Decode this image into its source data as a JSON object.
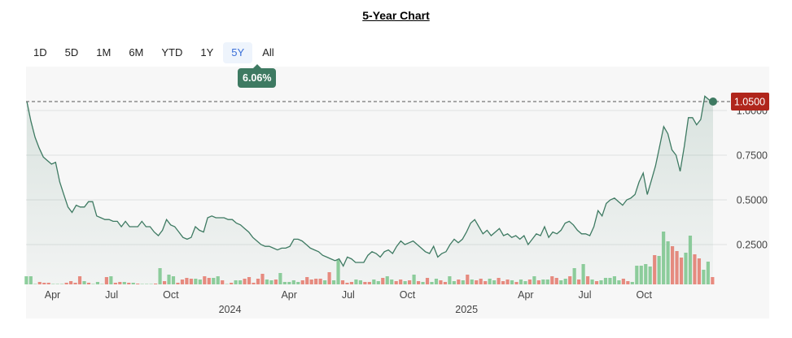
{
  "title": "5-Year Chart",
  "tabs": [
    "1D",
    "5D",
    "1M",
    "6M",
    "YTD",
    "1Y",
    "5Y",
    "All"
  ],
  "active_tab": "5Y",
  "change_badge": "6.06%",
  "colors": {
    "line": "#3e7a62",
    "up": "#8fcf9d",
    "down": "#ec8b80",
    "last_price": "#b0261c"
  },
  "chart_data": {
    "type": "line",
    "title": "5-Year Chart",
    "ylim": [
      0,
      1.1
    ],
    "y_ticks": [
      "0.2500",
      "0.5000",
      "0.7500",
      "1.0000"
    ],
    "y_tick_values": [
      0.25,
      0.5,
      0.75,
      1.0
    ],
    "last_price_label": "1.0500",
    "last_price": 1.05,
    "x_range_months_since_apr_2023": [
      -1.3,
      33.5
    ],
    "x_ticks": [
      {
        "label": "Apr",
        "t": 0,
        "row": 1
      },
      {
        "label": "Jul",
        "t": 3,
        "row": 1
      },
      {
        "label": "Oct",
        "t": 6,
        "row": 1
      },
      {
        "label": "2024",
        "t": 9,
        "row": 2
      },
      {
        "label": "Apr",
        "t": 12,
        "row": 1
      },
      {
        "label": "Jul",
        "t": 15,
        "row": 1
      },
      {
        "label": "Oct",
        "t": 18,
        "row": 1
      },
      {
        "label": "2025",
        "t": 21,
        "row": 2
      },
      {
        "label": "Apr",
        "t": 24,
        "row": 1
      },
      {
        "label": "Jul",
        "t": 27,
        "row": 1
      },
      {
        "label": "Oct",
        "t": 30,
        "row": 1
      }
    ],
    "price": [
      1.05,
      0.94,
      0.85,
      0.79,
      0.74,
      0.72,
      0.7,
      0.71,
      0.6,
      0.53,
      0.46,
      0.43,
      0.47,
      0.46,
      0.46,
      0.49,
      0.49,
      0.41,
      0.4,
      0.39,
      0.39,
      0.38,
      0.38,
      0.35,
      0.38,
      0.35,
      0.35,
      0.35,
      0.38,
      0.35,
      0.35,
      0.32,
      0.3,
      0.33,
      0.39,
      0.36,
      0.35,
      0.32,
      0.29,
      0.28,
      0.29,
      0.35,
      0.33,
      0.32,
      0.4,
      0.41,
      0.4,
      0.4,
      0.4,
      0.39,
      0.39,
      0.37,
      0.36,
      0.34,
      0.32,
      0.29,
      0.27,
      0.25,
      0.24,
      0.24,
      0.23,
      0.22,
      0.23,
      0.23,
      0.24,
      0.28,
      0.28,
      0.27,
      0.25,
      0.23,
      0.22,
      0.21,
      0.19,
      0.18,
      0.17,
      0.16,
      0.17,
      0.13,
      0.18,
      0.17,
      0.15,
      0.15,
      0.15,
      0.19,
      0.21,
      0.2,
      0.18,
      0.21,
      0.22,
      0.2,
      0.24,
      0.27,
      0.25,
      0.26,
      0.27,
      0.25,
      0.23,
      0.21,
      0.2,
      0.24,
      0.18,
      0.2,
      0.21,
      0.25,
      0.28,
      0.26,
      0.28,
      0.32,
      0.37,
      0.39,
      0.35,
      0.31,
      0.33,
      0.3,
      0.32,
      0.34,
      0.3,
      0.31,
      0.29,
      0.3,
      0.28,
      0.3,
      0.25,
      0.28,
      0.31,
      0.3,
      0.35,
      0.29,
      0.32,
      0.31,
      0.33,
      0.37,
      0.38,
      0.36,
      0.33,
      0.31,
      0.31,
      0.3,
      0.35,
      0.44,
      0.41,
      0.48,
      0.5,
      0.51,
      0.49,
      0.47,
      0.5,
      0.51,
      0.53,
      0.6,
      0.65,
      0.53,
      0.61,
      0.69,
      0.8,
      0.91,
      0.87,
      0.78,
      0.75,
      0.66,
      0.8,
      0.96,
      0.96,
      0.92,
      0.95,
      1.08,
      1.06,
      1.05
    ],
    "volume_signed": [
      10,
      10,
      0,
      -3,
      -2,
      -2,
      0,
      0,
      0,
      -2,
      -4,
      -2,
      -10,
      4,
      -2,
      0,
      3,
      0,
      -9,
      10,
      -2,
      -3,
      3,
      -2,
      2,
      -1,
      0,
      0,
      0,
      -1,
      20,
      -4,
      12,
      10,
      -2,
      -6,
      -8,
      -7,
      7,
      6,
      -10,
      -8,
      8,
      10,
      -5,
      0,
      -2,
      5,
      5,
      -7,
      -9,
      -2,
      -7,
      -13,
      6,
      5,
      -6,
      14,
      3,
      3,
      5,
      3,
      -5,
      -9,
      -6,
      -7,
      -7,
      5,
      -15,
      5,
      30,
      -5,
      -2,
      -3,
      6,
      5,
      -3,
      -3,
      6,
      4,
      -8,
      10,
      6,
      -4,
      -6,
      4,
      -5,
      12,
      -4,
      3,
      -8,
      3,
      7,
      -5,
      -3,
      10,
      4,
      -6,
      5,
      -12,
      6,
      -5,
      -7,
      -4,
      7,
      5,
      -8,
      -4,
      -6,
      5,
      -3,
      6,
      4,
      -6,
      10,
      -5,
      6,
      6,
      -10,
      -8,
      5,
      7,
      -10,
      20,
      -6,
      25,
      -10,
      6,
      -4,
      5,
      8,
      8,
      10,
      5,
      -7,
      -4,
      3,
      23,
      23,
      25,
      22,
      -36,
      35,
      65,
      53,
      -47,
      -41,
      -33,
      39,
      60,
      -37,
      -32,
      18,
      28,
      -9
    ]
  }
}
